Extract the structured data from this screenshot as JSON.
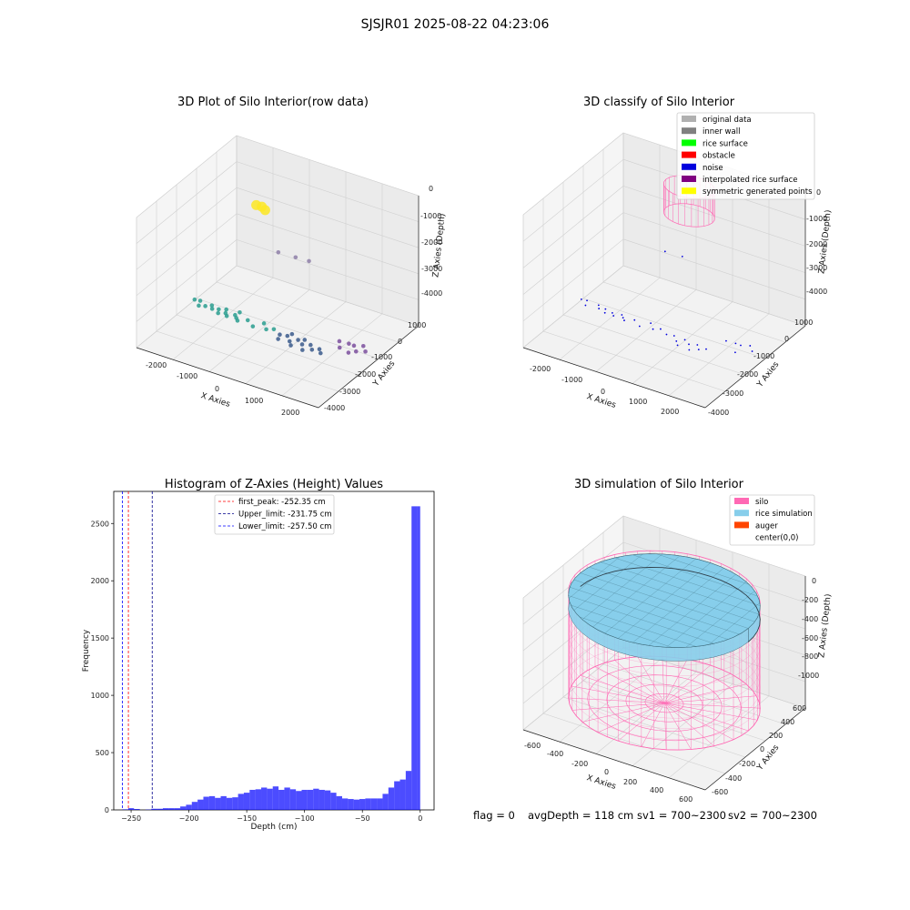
{
  "figure": {
    "suptitle": "SJSJR01 2025-08-22 04:23:06",
    "footer": {
      "flag": "flag = 0",
      "avg_depth": "avgDepth = 118 cm",
      "sv1": "sv1 = 700~2300",
      "sv2": "sv2 = 700~2300"
    }
  },
  "chart_data": [
    {
      "type": "scatter",
      "projection": "3d",
      "title": "3D Plot of Silo Interior(row data)",
      "xlabel": "X Axies",
      "ylabel": "Y Axies",
      "zlabel": "Z Axies (Depth)",
      "x_ticks": [
        "-2000",
        "-1000",
        "0",
        "1000",
        "2000"
      ],
      "y_ticks": [
        "1000",
        "0",
        "-1000",
        "-2000",
        "-3000",
        "-4000"
      ],
      "z_ticks": [
        "0",
        "-1000",
        "-2000",
        "-3000",
        "-4000"
      ],
      "xlim": [
        -2300,
        2400
      ],
      "ylim": [
        -4300,
        1300
      ],
      "zlim": [
        -4500,
        200
      ],
      "colormap": "viridis by depth",
      "clusters": [
        {
          "points": [
            [
              -500,
              -1500,
              0
            ],
            [
              -380,
              -1450,
              -30
            ],
            [
              -260,
              -1520,
              -60
            ]
          ],
          "color": "#fde725"
        },
        {
          "points": [
            [
              -2000,
              -1700,
              -4000
            ],
            [
              -1900,
              -1600,
              -4050
            ],
            [
              -1800,
              -1900,
              -4020
            ],
            [
              -1600,
              -1600,
              -4080
            ],
            [
              -1500,
              -1800,
              -4050
            ],
            [
              -1400,
              -1650,
              -4100
            ],
            [
              -1300,
              -1900,
              -4060
            ],
            [
              -1200,
              -1700,
              -4120
            ],
            [
              -1100,
              -1850,
              -4100
            ],
            [
              -1000,
              -1600,
              -4150
            ],
            [
              -900,
              -1750,
              -4130
            ],
            [
              -800,
              -1900,
              -4100
            ],
            [
              -1700,
              -1750,
              -4070
            ],
            [
              -1250,
              -1550,
              -4090
            ],
            [
              -950,
              -1450,
              -4110
            ],
            [
              -650,
              -1650,
              -4150
            ],
            [
              -450,
              -1800,
              -4200
            ],
            [
              -300,
              -1500,
              -4180
            ],
            [
              -150,
              -1700,
              -4220
            ],
            [
              0,
              -1600,
              -4200
            ]
          ],
          "color": "#2a9d8f"
        },
        {
          "points": [
            [
              200,
              -1700,
              -4250
            ],
            [
              350,
              -1600,
              -4280
            ],
            [
              500,
              -1800,
              -4300
            ],
            [
              650,
              -1650,
              -4260
            ],
            [
              800,
              -1750,
              -4300
            ],
            [
              950,
              -1600,
              -4330
            ],
            [
              1100,
              -1850,
              -4300
            ],
            [
              250,
              -1900,
              -4280
            ],
            [
              600,
              -1950,
              -4320
            ],
            [
              900,
              -1950,
              -4350
            ],
            [
              1200,
              -1650,
              -4340
            ],
            [
              1300,
              -1800,
              -4360
            ],
            [
              400,
              -1450,
              -4270
            ],
            [
              750,
              -1500,
              -4290
            ]
          ],
          "color": "#3b5b8c"
        },
        {
          "points": [
            [
              1600,
              -1400,
              -4000
            ],
            [
              1800,
              -1300,
              -4050
            ],
            [
              2000,
              -1450,
              -3950
            ],
            [
              2150,
              -1250,
              -4000
            ],
            [
              2250,
              -1350,
              -4100
            ],
            [
              1700,
              -1600,
              -4080
            ],
            [
              1950,
              -1650,
              -4120
            ],
            [
              2100,
              -1550,
              -4060
            ]
          ],
          "color": "#7b4f9d"
        },
        {
          "points": [
            [
              -900,
              600,
              -3000
            ],
            [
              -500,
              700,
              -3050
            ],
            [
              -200,
              800,
              -3100
            ]
          ],
          "color": "#8e7fa8"
        }
      ]
    },
    {
      "type": "scatter",
      "projection": "3d",
      "title": "3D classify of Silo Interior",
      "xlabel": "X Axies",
      "ylabel": "Y Axies",
      "zlabel": "Z Axies (Depth)",
      "x_ticks": [
        "-2000",
        "-1000",
        "0",
        "1000",
        "2000"
      ],
      "y_ticks": [
        "1000",
        "0",
        "-1000",
        "-2000",
        "-3000",
        "-4000"
      ],
      "z_ticks": [
        "0",
        "-1000",
        "-2000",
        "-3000",
        "-4000"
      ],
      "xlim": [
        -2300,
        2400
      ],
      "ylim": [
        -4300,
        1300
      ],
      "zlim": [
        -4500,
        200
      ],
      "legend": [
        {
          "label": "original data",
          "color": "#b0b0b0"
        },
        {
          "label": "inner wall",
          "color": "#808080"
        },
        {
          "label": "rice surface",
          "color": "#00ff00"
        },
        {
          "label": "obstacle",
          "color": "#ff0000"
        },
        {
          "label": "noise",
          "color": "#0000dd"
        },
        {
          "label": "interpolated rice surface",
          "color": "#800080"
        },
        {
          "label": "symmetric generated points",
          "color": "#ffff00"
        }
      ],
      "noise_points": [
        [
          -2000,
          -1700,
          -4000
        ],
        [
          -1900,
          -1600,
          -4050
        ],
        [
          -1800,
          -1900,
          -4020
        ],
        [
          -1600,
          -1600,
          -4080
        ],
        [
          -1500,
          -1800,
          -4050
        ],
        [
          -1400,
          -1650,
          -4100
        ],
        [
          -1300,
          -1900,
          -4060
        ],
        [
          -1200,
          -1700,
          -4120
        ],
        [
          -1100,
          -1850,
          -4100
        ],
        [
          -1000,
          -1600,
          -4150
        ],
        [
          -900,
          -1750,
          -4130
        ],
        [
          -800,
          -1900,
          -4100
        ],
        [
          -650,
          -1650,
          -4150
        ],
        [
          -450,
          -1800,
          -4200
        ],
        [
          -300,
          -1500,
          -4180
        ],
        [
          -150,
          -1700,
          -4220
        ],
        [
          0,
          -1600,
          -4200
        ],
        [
          200,
          -1700,
          -4250
        ],
        [
          350,
          -1600,
          -4280
        ],
        [
          500,
          -1800,
          -4300
        ],
        [
          650,
          -1650,
          -4260
        ],
        [
          800,
          -1750,
          -4300
        ],
        [
          950,
          -1600,
          -4330
        ],
        [
          1100,
          -1850,
          -4300
        ],
        [
          600,
          -1950,
          -4320
        ],
        [
          900,
          -1950,
          -4350
        ],
        [
          1200,
          -1650,
          -4340
        ],
        [
          1600,
          -1400,
          -4000
        ],
        [
          1800,
          -1300,
          -4050
        ],
        [
          2000,
          -1450,
          -3950
        ],
        [
          2150,
          -1250,
          -4000
        ],
        [
          2250,
          -1350,
          -4100
        ],
        [
          1950,
          -1650,
          -4120
        ],
        [
          -900,
          600,
          -3000
        ],
        [
          -500,
          700,
          -3050
        ]
      ],
      "silo_cylinder": {
        "center": [
          0,
          0
        ],
        "radius": 600,
        "z_range": [
          -1000,
          0
        ],
        "color": "#ff69b4"
      }
    },
    {
      "type": "bar",
      "title": "Histogram of Z-Axies (Height) Values",
      "xlabel": "Depth (cm)",
      "ylabel": "Frequency",
      "xlim": [
        -265,
        12
      ],
      "ylim": [
        0,
        2780
      ],
      "x_ticks": [
        -250,
        -200,
        -150,
        -100,
        -50,
        0
      ],
      "x_tick_labels": [
        "−250",
        "−200",
        "−150",
        "−100",
        "−50",
        "0"
      ],
      "y_ticks": [
        0,
        500,
        1000,
        1500,
        2000,
        2500
      ],
      "y_tick_labels": [
        "0",
        "500",
        "1000",
        "1500",
        "2000",
        "2500"
      ],
      "bar_color": "#0000ff",
      "bar_alpha": 0.7,
      "bins": [
        {
          "x0": -257.5,
          "x1": -252.5,
          "count": 5
        },
        {
          "x0": -252.5,
          "x1": -247.5,
          "count": 15
        },
        {
          "x0": -247.5,
          "x1": -242.5,
          "count": 8
        },
        {
          "x0": -242.5,
          "x1": -237.5,
          "count": 0
        },
        {
          "x0": -237.5,
          "x1": -232.5,
          "count": 3
        },
        {
          "x0": -232.5,
          "x1": -227.5,
          "count": 10
        },
        {
          "x0": -227.5,
          "x1": -222.5,
          "count": 10
        },
        {
          "x0": -222.5,
          "x1": -217.5,
          "count": 15
        },
        {
          "x0": -217.5,
          "x1": -212.5,
          "count": 15
        },
        {
          "x0": -212.5,
          "x1": -207.5,
          "count": 15
        },
        {
          "x0": -207.5,
          "x1": -202.5,
          "count": 30
        },
        {
          "x0": -202.5,
          "x1": -197.5,
          "count": 45
        },
        {
          "x0": -197.5,
          "x1": -192.5,
          "count": 70
        },
        {
          "x0": -192.5,
          "x1": -187.5,
          "count": 90
        },
        {
          "x0": -187.5,
          "x1": -182.5,
          "count": 115
        },
        {
          "x0": -182.5,
          "x1": -177.5,
          "count": 120
        },
        {
          "x0": -177.5,
          "x1": -172.5,
          "count": 105
        },
        {
          "x0": -172.5,
          "x1": -167.5,
          "count": 120
        },
        {
          "x0": -167.5,
          "x1": -162.5,
          "count": 105
        },
        {
          "x0": -162.5,
          "x1": -157.5,
          "count": 110
        },
        {
          "x0": -157.5,
          "x1": -152.5,
          "count": 140
        },
        {
          "x0": -152.5,
          "x1": -147.5,
          "count": 150
        },
        {
          "x0": -147.5,
          "x1": -142.5,
          "count": 175
        },
        {
          "x0": -142.5,
          "x1": -137.5,
          "count": 180
        },
        {
          "x0": -137.5,
          "x1": -132.5,
          "count": 195
        },
        {
          "x0": -132.5,
          "x1": -127.5,
          "count": 185
        },
        {
          "x0": -127.5,
          "x1": -122.5,
          "count": 205
        },
        {
          "x0": -122.5,
          "x1": -117.5,
          "count": 175
        },
        {
          "x0": -117.5,
          "x1": -112.5,
          "count": 195
        },
        {
          "x0": -112.5,
          "x1": -107.5,
          "count": 180
        },
        {
          "x0": -107.5,
          "x1": -102.5,
          "count": 165
        },
        {
          "x0": -102.5,
          "x1": -97.5,
          "count": 175
        },
        {
          "x0": -97.5,
          "x1": -92.5,
          "count": 175
        },
        {
          "x0": -92.5,
          "x1": -87.5,
          "count": 185
        },
        {
          "x0": -87.5,
          "x1": -82.5,
          "count": 175
        },
        {
          "x0": -82.5,
          "x1": -77.5,
          "count": 170
        },
        {
          "x0": -77.5,
          "x1": -72.5,
          "count": 150
        },
        {
          "x0": -72.5,
          "x1": -67.5,
          "count": 120
        },
        {
          "x0": -67.5,
          "x1": -62.5,
          "count": 100
        },
        {
          "x0": -62.5,
          "x1": -57.5,
          "count": 95
        },
        {
          "x0": -57.5,
          "x1": -52.5,
          "count": 90
        },
        {
          "x0": -52.5,
          "x1": -47.5,
          "count": 95
        },
        {
          "x0": -47.5,
          "x1": -42.5,
          "count": 100
        },
        {
          "x0": -42.5,
          "x1": -37.5,
          "count": 100
        },
        {
          "x0": -37.5,
          "x1": -32.5,
          "count": 100
        },
        {
          "x0": -32.5,
          "x1": -27.5,
          "count": 140
        },
        {
          "x0": -27.5,
          "x1": -22.5,
          "count": 195
        },
        {
          "x0": -22.5,
          "x1": -17.5,
          "count": 250
        },
        {
          "x0": -17.5,
          "x1": -12.5,
          "count": 265
        },
        {
          "x0": -12.5,
          "x1": -7.5,
          "count": 340
        },
        {
          "x0": -7.5,
          "x1": -2.5,
          "count": 2650
        },
        {
          "x0": -2.5,
          "x1": 0.0,
          "count": 2650
        }
      ],
      "vlines": [
        {
          "label": "first_peak: -252.35 cm",
          "x": -252.35,
          "color": "#ff0000"
        },
        {
          "label": "Upper_limit: -231.75 cm",
          "x": -231.75,
          "color": "#00008b"
        },
        {
          "label": "Lower_limit: -257.50 cm",
          "x": -257.5,
          "color": "#0000ff"
        }
      ],
      "legend_position": "upper center"
    },
    {
      "type": "surface",
      "projection": "3d",
      "title": "3D simulation of Silo Interior",
      "xlabel": "X Axies",
      "ylabel": "Y Axies",
      "zlabel": "Z Axies (Depth)",
      "x_ticks": [
        "-600",
        "-400",
        "-200",
        "0",
        "200",
        "400",
        "600"
      ],
      "y_ticks": [
        "600",
        "400",
        "200",
        "0",
        "-200",
        "-400",
        "-600"
      ],
      "z_ticks": [
        "0",
        "-200",
        "-400",
        "-600",
        "-800",
        "-1000"
      ],
      "xlim": [
        -650,
        650
      ],
      "ylim": [
        -650,
        650
      ],
      "zlim": [
        -1150,
        100
      ],
      "silo": {
        "radius": 600,
        "z_range": [
          -1000,
          0
        ],
        "color": "#ff69b4"
      },
      "rice_surface": {
        "avg_depth": -118,
        "color": "#87ceeb"
      },
      "legend": [
        {
          "label": "silo",
          "color": "#ff69b4"
        },
        {
          "label": "rice simulation",
          "color": "#87ceeb"
        },
        {
          "label": "auger",
          "color": "#ff4500"
        },
        {
          "label": "center(0,0)",
          "color": "#ffffff"
        }
      ]
    }
  ]
}
